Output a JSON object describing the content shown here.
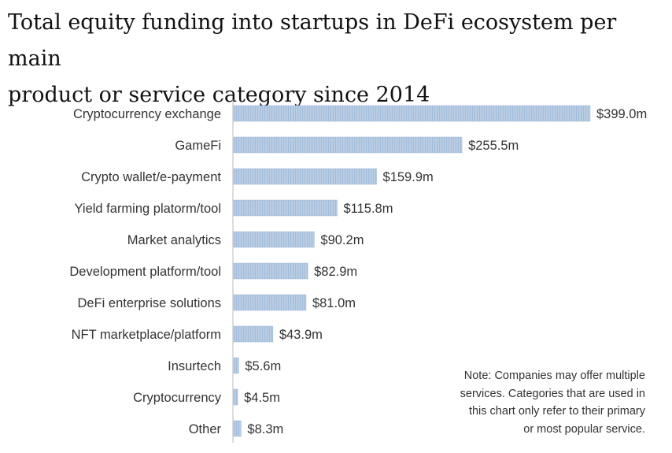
{
  "title_lines": [
    "Total equity funding into startups in DeFi ecosystem per main",
    "product or service category since 2014"
  ],
  "note_lines": [
    "Note: Companies may offer multiple",
    "services. Categories that are used in",
    "this chart only refer to their primary",
    "or most popular service."
  ],
  "colors": {
    "bar": "#b9cde4",
    "bar_stripe": "#9fb8d6",
    "label": "#333333",
    "value": "#333333",
    "axis": "#bbbbbb"
  },
  "chart_data": {
    "type": "bar",
    "orientation": "horizontal",
    "title": "Total equity funding into startups in DeFi ecosystem per main product or service category since 2014",
    "categories": [
      "Cryptocurrency exchange",
      "GameFi",
      "Crypto wallet/e-payment",
      "Yield farming platorm/tool",
      "Market analytics",
      "Development platform/tool",
      "DeFi enterprise solutions",
      "NFT marketplace/platform",
      "Insurtech",
      "Cryptocurrency",
      "Other"
    ],
    "values": [
      399.0,
      255.5,
      159.9,
      115.8,
      90.2,
      82.9,
      81.0,
      43.9,
      5.6,
      4.5,
      8.3
    ],
    "value_labels": [
      "$399.0m",
      "$255.5m",
      "$159.9m",
      "$115.8m",
      "$90.2m",
      "$82.9m",
      "$81.0m",
      "$43.9m",
      "$5.6m",
      "$4.5m",
      "$8.3m"
    ],
    "unit": "USD millions",
    "xlim": [
      0,
      399.0
    ],
    "grid": false,
    "legend": "none"
  }
}
